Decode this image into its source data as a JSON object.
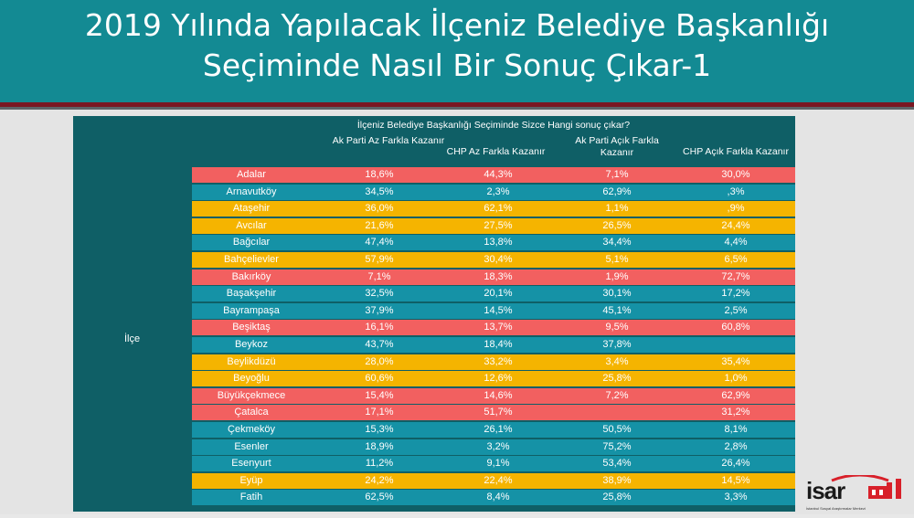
{
  "title_line1": "2019 Yılında Yapılacak İlçeniz Belediye Başkanlığı",
  "title_line2": "Seçiminde Nasıl Bir Sonuç Çıkar-1",
  "table": {
    "row_header": "İlçe",
    "question": "İlçeniz Belediye  Başkanlığı Seçiminde Sizce Hangi sonuç çıkar?",
    "columns": [
      "Ak Parti Az Farkla Kazanır",
      "CHP Az Farkla Kazanır",
      "Ak Parti Açık Farkla Kazanır",
      "CHP Açık Farkla Kazanır"
    ],
    "colors": {
      "red": "#f26060",
      "teal": "#1592a6",
      "yellow": "#f5b400",
      "dark": "#0f5f66"
    },
    "rows": [
      {
        "name": "Adalar",
        "color": "red",
        "v": [
          "18,6%",
          "44,3%",
          "7,1%",
          "30,0%"
        ]
      },
      {
        "name": "Arnavutköy",
        "color": "teal",
        "v": [
          "34,5%",
          "2,3%",
          "62,9%",
          ",3%"
        ]
      },
      {
        "name": "Ataşehir",
        "color": "yellow",
        "v": [
          "36,0%",
          "62,1%",
          "1,1%",
          ",9%"
        ]
      },
      {
        "name": "Avcılar",
        "color": "yellow",
        "v": [
          "21,6%",
          "27,5%",
          "26,5%",
          "24,4%"
        ]
      },
      {
        "name": "Bağcılar",
        "color": "teal",
        "v": [
          "47,4%",
          "13,8%",
          "34,4%",
          "4,4%"
        ]
      },
      {
        "name": "Bahçelievler",
        "color": "yellow",
        "v": [
          "57,9%",
          "30,4%",
          "5,1%",
          "6,5%"
        ]
      },
      {
        "name": "Bakırköy",
        "color": "red",
        "v": [
          "7,1%",
          "18,3%",
          "1,9%",
          "72,7%"
        ]
      },
      {
        "name": "Başakşehir",
        "color": "teal",
        "v": [
          "32,5%",
          "20,1%",
          "30,1%",
          "17,2%"
        ]
      },
      {
        "name": "Bayrampaşa",
        "color": "teal",
        "v": [
          "37,9%",
          "14,5%",
          "45,1%",
          "2,5%"
        ]
      },
      {
        "name": "Beşiktaş",
        "color": "red",
        "v": [
          "16,1%",
          "13,7%",
          "9,5%",
          "60,8%"
        ]
      },
      {
        "name": "Beykoz",
        "color": "teal",
        "v": [
          "43,7%",
          "18,4%",
          "37,8%",
          ""
        ]
      },
      {
        "name": "Beylikdüzü",
        "color": "yellow",
        "v": [
          "28,0%",
          "33,2%",
          "3,4%",
          "35,4%"
        ]
      },
      {
        "name": "Beyoğlu",
        "color": "yellow",
        "v": [
          "60,6%",
          "12,6%",
          "25,8%",
          "1,0%"
        ]
      },
      {
        "name": "Büyükçekmece",
        "color": "red",
        "v": [
          "15,4%",
          "14,6%",
          "7,2%",
          "62,9%"
        ]
      },
      {
        "name": "Çatalca",
        "color": "red",
        "v": [
          "17,1%",
          "51,7%",
          "",
          "31,2%"
        ]
      },
      {
        "name": "Çekmeköy",
        "color": "teal",
        "v": [
          "15,3%",
          "26,1%",
          "50,5%",
          "8,1%"
        ]
      },
      {
        "name": "Esenler",
        "color": "teal",
        "v": [
          "18,9%",
          "3,2%",
          "75,2%",
          "2,8%"
        ]
      },
      {
        "name": "Esenyurt",
        "color": "teal",
        "v": [
          "11,2%",
          "9,1%",
          "53,4%",
          "26,4%"
        ]
      },
      {
        "name": "Eyüp",
        "color": "yellow",
        "v": [
          "24,2%",
          "22,4%",
          "38,9%",
          "14,5%"
        ]
      },
      {
        "name": "Fatih",
        "color": "teal",
        "v": [
          "62,5%",
          "8,4%",
          "25,8%",
          "3,3%"
        ]
      }
    ]
  },
  "logo": {
    "text": "isar",
    "caption": "İstanbul Sosyal Araştırmalar Merkezi"
  }
}
